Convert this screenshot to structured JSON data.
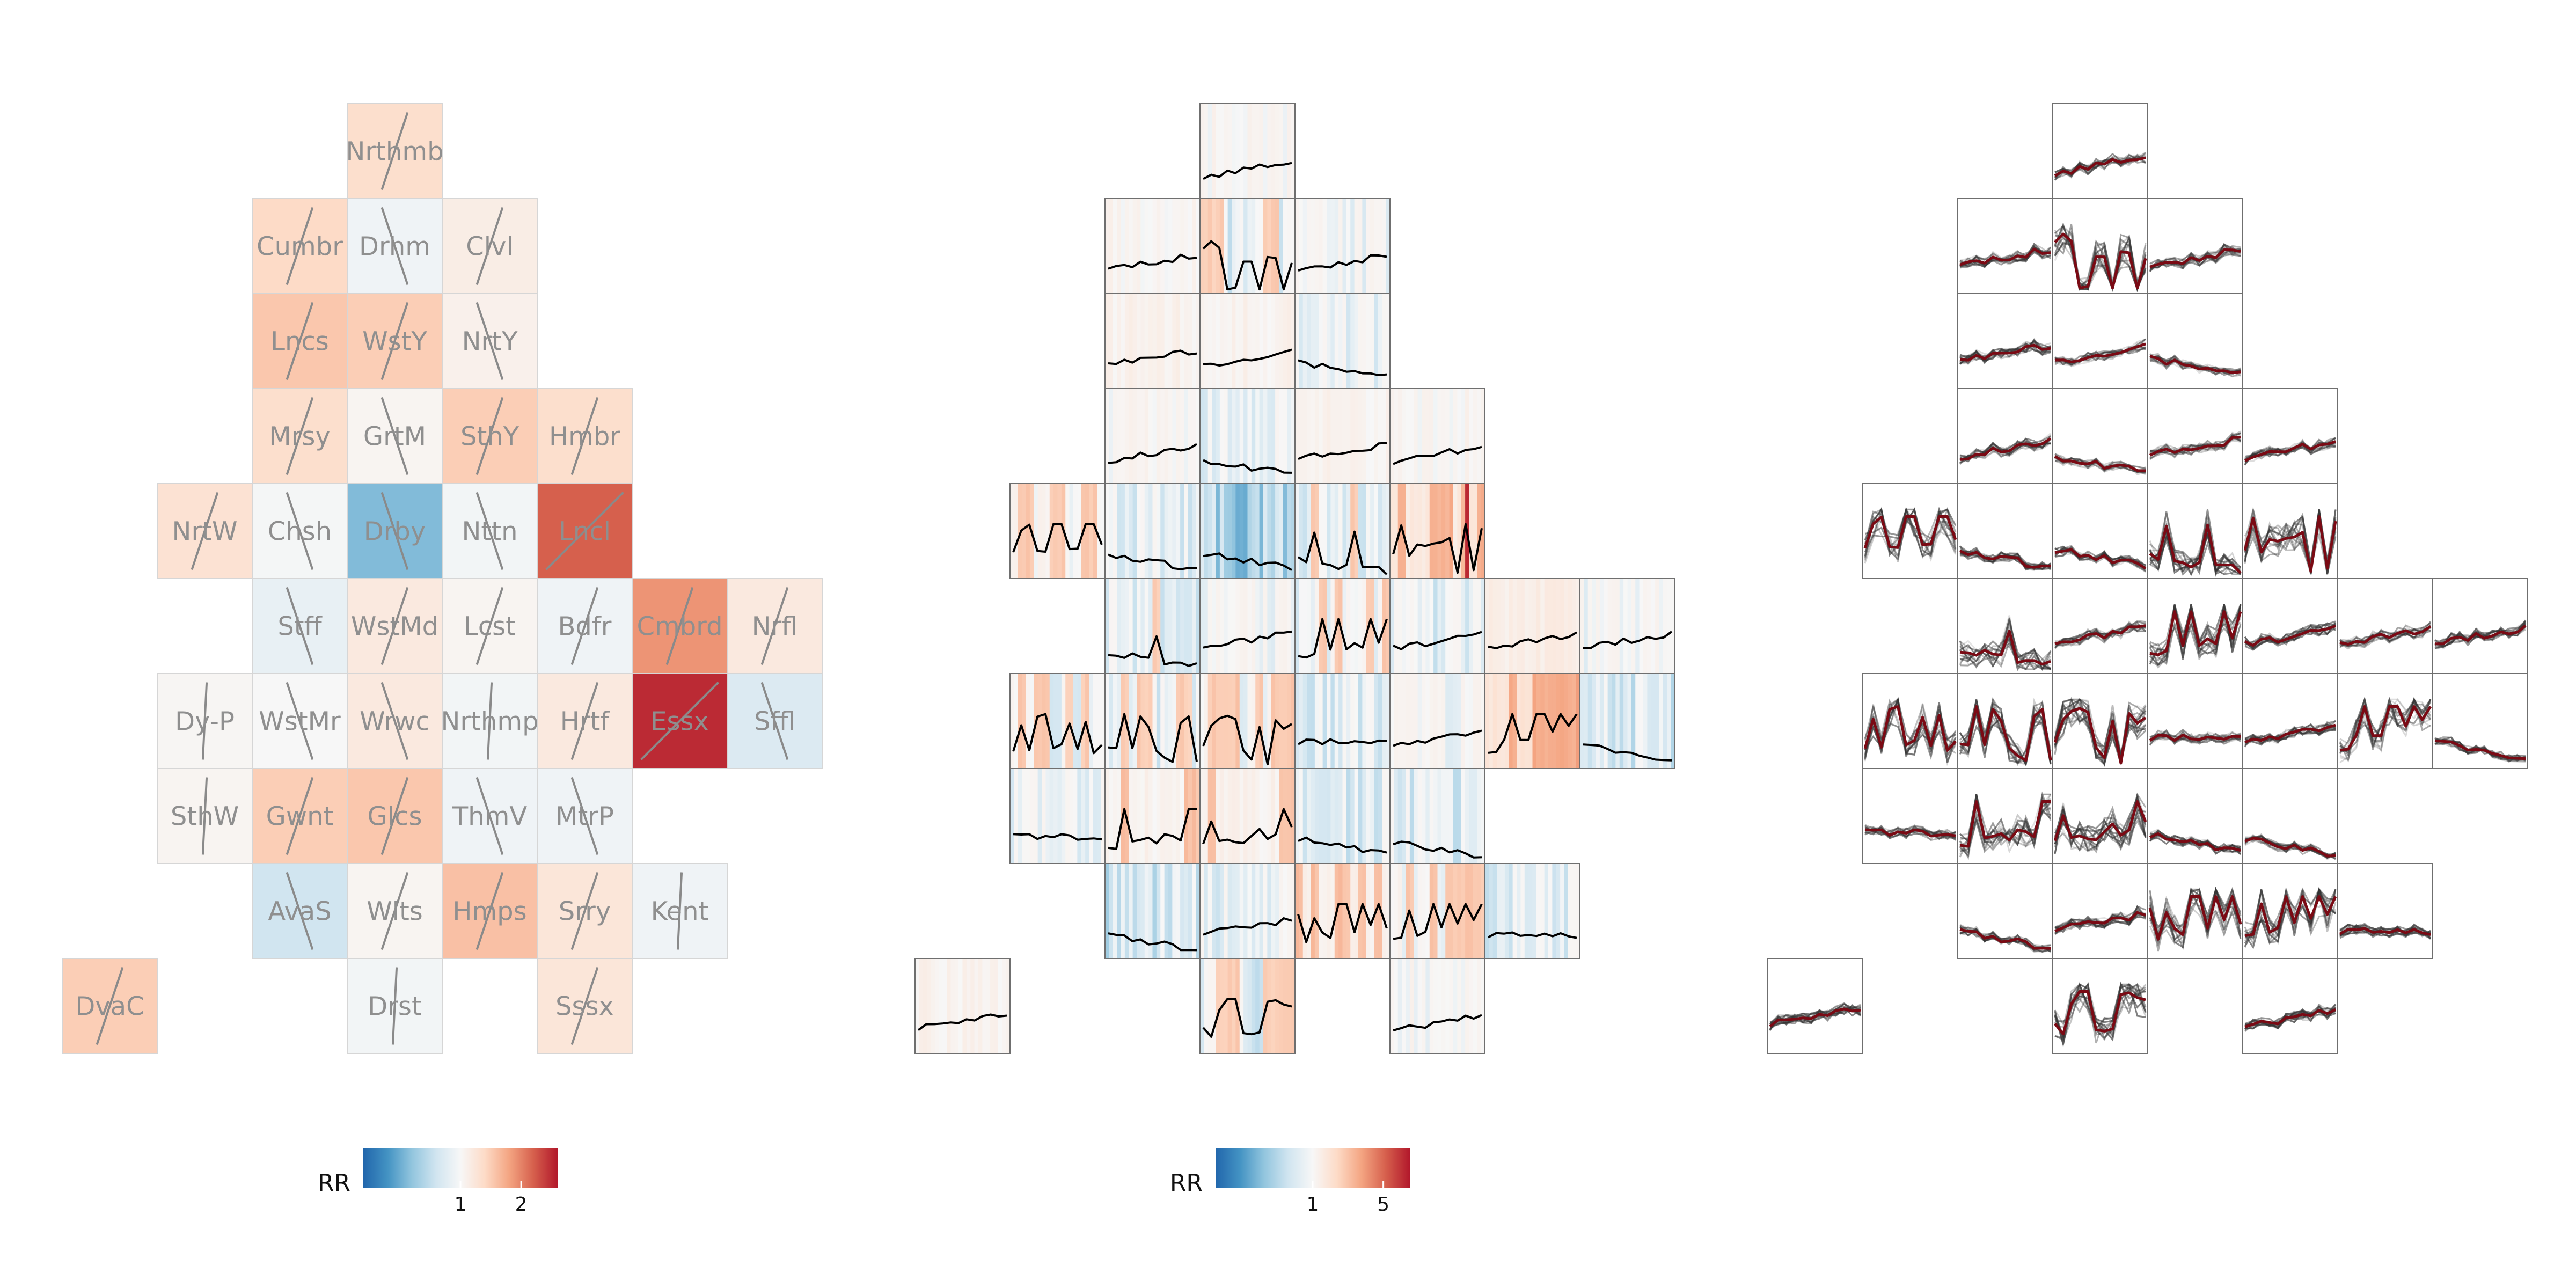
{
  "figure": {
    "panels": [
      {
        "id": "choropleth",
        "description_free": true
      },
      {
        "id": "heat-spark",
        "description_free": true
      },
      {
        "id": "trajectories",
        "description_free": true
      }
    ]
  },
  "colors": {
    "cell_border": "#d6d6d6",
    "frame_border": "#6f6f6f",
    "label": "#8f8f8f",
    "label_dark": "#4a4a4a",
    "trend_line": "#8a8a8a",
    "spark_line": "#000000",
    "traj_grey": "#333333",
    "traj_median": "#7a0a14",
    "scale": [
      "#2166ac",
      "#4393c3",
      "#92c5de",
      "#d1e5f0",
      "#f7f7f7",
      "#fddbc7",
      "#f4a582",
      "#d6604d",
      "#b2182b"
    ]
  },
  "chart_data": [
    {
      "type": "heatmap",
      "title": "",
      "cells": [
        {
          "label": "Nrthmb",
          "col": 3,
          "row": 0,
          "rr": 1.35,
          "trend": 1
        },
        {
          "label": "Cumbr",
          "col": 2,
          "row": 1,
          "rr": 1.4,
          "trend": 1
        },
        {
          "label": "Drhm",
          "col": 3,
          "row": 1,
          "rr": 0.95,
          "trend": -1
        },
        {
          "label": "Clvl",
          "col": 4,
          "row": 1,
          "rr": 1.15,
          "trend": 1
        },
        {
          "label": "Lncs",
          "col": 2,
          "row": 2,
          "rr": 1.55,
          "trend": 1
        },
        {
          "label": "WstY",
          "col": 3,
          "row": 2,
          "rr": 1.5,
          "trend": 1
        },
        {
          "label": "NrtY",
          "col": 4,
          "row": 2,
          "rr": 1.1,
          "trend": -1
        },
        {
          "label": "Mrsy",
          "col": 2,
          "row": 3,
          "rr": 1.35,
          "trend": 1
        },
        {
          "label": "GrtM",
          "col": 3,
          "row": 3,
          "rr": 1.05,
          "trend": -1
        },
        {
          "label": "SthY",
          "col": 4,
          "row": 3,
          "rr": 1.5,
          "trend": 1
        },
        {
          "label": "Hmbr",
          "col": 5,
          "row": 3,
          "rr": 1.35,
          "trend": 1
        },
        {
          "label": "NrtW",
          "col": 1,
          "row": 4,
          "rr": 1.3,
          "trend": 1
        },
        {
          "label": "Chsh",
          "col": 2,
          "row": 4,
          "rr": 0.98,
          "trend": -1
        },
        {
          "label": "Drby",
          "col": 3,
          "row": 4,
          "rr": 0.45,
          "trend": -1
        },
        {
          "label": "Nttn",
          "col": 4,
          "row": 4,
          "rr": 0.97,
          "trend": -1
        },
        {
          "label": "Lncl",
          "col": 5,
          "row": 4,
          "rr": 2.2,
          "trend": 2
        },
        {
          "label": "Stff",
          "col": 2,
          "row": 5,
          "rr": 0.9,
          "trend": -1
        },
        {
          "label": "WstMd",
          "col": 3,
          "row": 5,
          "rr": 1.2,
          "trend": 1
        },
        {
          "label": "Lcst",
          "col": 4,
          "row": 5,
          "rr": 1.05,
          "trend": 1
        },
        {
          "label": "Bdfr",
          "col": 5,
          "row": 5,
          "rr": 0.95,
          "trend": 1
        },
        {
          "label": "Cmbrd",
          "col": 6,
          "row": 5,
          "rr": 1.9,
          "trend": 1
        },
        {
          "label": "Nrfl",
          "col": 7,
          "row": 5,
          "rr": 1.2,
          "trend": 1
        },
        {
          "label": "Dy-P",
          "col": 1,
          "row": 6,
          "rr": 1.03,
          "trend": 0
        },
        {
          "label": "WstMr",
          "col": 2,
          "row": 6,
          "rr": 1.0,
          "trend": -1
        },
        {
          "label": "Wrwc",
          "col": 3,
          "row": 6,
          "rr": 1.2,
          "trend": -1
        },
        {
          "label": "Nrthmp",
          "col": 4,
          "row": 6,
          "rr": 0.97,
          "trend": 0
        },
        {
          "label": "Hrtf",
          "col": 5,
          "row": 6,
          "rr": 1.2,
          "trend": 1
        },
        {
          "label": "Essx",
          "col": 6,
          "row": 6,
          "rr": 2.5,
          "trend": 2
        },
        {
          "label": "Sffl",
          "col": 7,
          "row": 6,
          "rr": 0.82,
          "trend": -1
        },
        {
          "label": "SthW",
          "col": 1,
          "row": 7,
          "rr": 1.05,
          "trend": 0
        },
        {
          "label": "Gwnt",
          "col": 2,
          "row": 7,
          "rr": 1.5,
          "trend": 1
        },
        {
          "label": "Glcs",
          "col": 3,
          "row": 7,
          "rr": 1.55,
          "trend": 1
        },
        {
          "label": "ThmV",
          "col": 4,
          "row": 7,
          "rr": 0.95,
          "trend": -1
        },
        {
          "label": "MtrP",
          "col": 5,
          "row": 7,
          "rr": 0.95,
          "trend": -1
        },
        {
          "label": "AvaS",
          "col": 2,
          "row": 8,
          "rr": 0.75,
          "trend": -1
        },
        {
          "label": "Wlts",
          "col": 3,
          "row": 8,
          "rr": 1.05,
          "trend": 1
        },
        {
          "label": "Hmps",
          "col": 4,
          "row": 8,
          "rr": 1.6,
          "trend": 1
        },
        {
          "label": "Srry",
          "col": 5,
          "row": 8,
          "rr": 1.25,
          "trend": 1
        },
        {
          "label": "Kent",
          "col": 6,
          "row": 8,
          "rr": 0.95,
          "trend": 0
        },
        {
          "label": "DvaC",
          "col": 0,
          "row": 9,
          "rr": 1.5,
          "trend": 1
        },
        {
          "label": "Drst",
          "col": 3,
          "row": 9,
          "rr": 0.97,
          "trend": 0
        },
        {
          "label": "Sssx",
          "col": 5,
          "row": 9,
          "rr": 1.25,
          "trend": 1
        }
      ],
      "legend": {
        "title": "RR",
        "ticks": [
          "1",
          "2"
        ],
        "tick_values": [
          1,
          2
        ],
        "range": [
          0,
          2.6
        ]
      }
    },
    {
      "type": "heatmap",
      "title": "",
      "legend": {
        "title": "RR",
        "ticks": [
          "1",
          "5"
        ],
        "tick_values": [
          1,
          5
        ],
        "range": [
          0,
          6.5
        ]
      }
    },
    {
      "type": "line",
      "title": ""
    }
  ]
}
